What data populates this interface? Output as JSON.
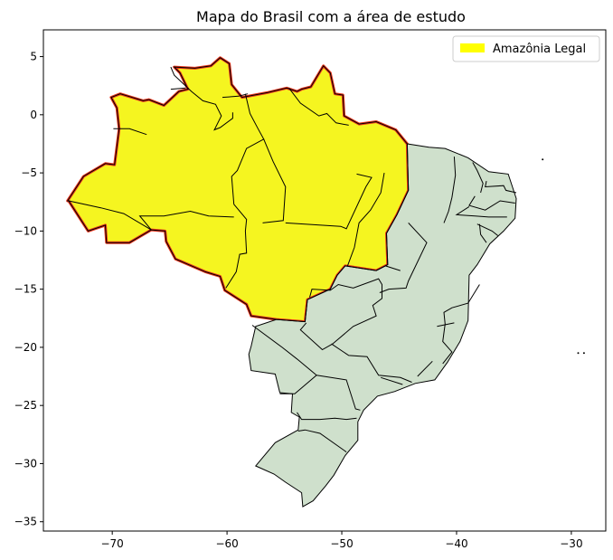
{
  "chart_data": {
    "type": "map",
    "title": "Mapa do Brasil com a área de estudo",
    "xlabel": "",
    "ylabel": "",
    "xlim": [
      -76,
      -27
    ],
    "ylim": [
      -35.8,
      7.3
    ],
    "x_ticks": [
      -70,
      -60,
      -50,
      -40,
      -30
    ],
    "y_ticks": [
      5,
      0,
      -5,
      -10,
      -15,
      -20,
      -25,
      -30,
      -35
    ],
    "grid": false,
    "legend": {
      "placement": "top-right",
      "entries": [
        {
          "label": "Amazônia Legal",
          "color": "#ffff00"
        }
      ]
    },
    "colors": {
      "amazonia_fill": "#f5f520",
      "amazonia_outline": "#e8341c",
      "other_states_fill": "#cfe0cc",
      "state_border": "#000000"
    },
    "regions": [
      {
        "name": "amazonia",
        "polygon": [
          [
            -73.9,
            -7.4
          ],
          [
            -72.5,
            -5.3
          ],
          [
            -70.6,
            -4.2
          ],
          [
            -69.8,
            -4.3
          ],
          [
            -69.4,
            -1.2
          ],
          [
            -69.6,
            0.6
          ],
          [
            -70.1,
            1.5
          ],
          [
            -69.3,
            1.8
          ],
          [
            -67.3,
            1.2
          ],
          [
            -66.8,
            1.3
          ],
          [
            -65.5,
            0.8
          ],
          [
            -64.2,
            2.0
          ],
          [
            -63.4,
            2.2
          ],
          [
            -64.1,
            3.6
          ],
          [
            -64.6,
            4.1
          ],
          [
            -62.8,
            4.0
          ],
          [
            -61.4,
            4.2
          ],
          [
            -60.6,
            4.9
          ],
          [
            -59.8,
            4.4
          ],
          [
            -59.6,
            2.6
          ],
          [
            -58.7,
            1.5
          ],
          [
            -56.5,
            1.9
          ],
          [
            -54.8,
            2.3
          ],
          [
            -53.9,
            2.0
          ],
          [
            -53.5,
            2.2
          ],
          [
            -52.7,
            2.4
          ],
          [
            -51.6,
            4.2
          ],
          [
            -51.0,
            3.6
          ],
          [
            -50.6,
            1.8
          ],
          [
            -49.9,
            1.7
          ],
          [
            -49.8,
            -0.1
          ],
          [
            -48.5,
            -0.8
          ],
          [
            -47.0,
            -0.6
          ],
          [
            -45.3,
            -1.3
          ],
          [
            -44.3,
            -2.5
          ],
          [
            -44.2,
            -6.5
          ],
          [
            -45.2,
            -8.6
          ],
          [
            -46.1,
            -10.2
          ],
          [
            -46.0,
            -12.9
          ],
          [
            -47.0,
            -13.4
          ],
          [
            -49.7,
            -13.0
          ],
          [
            -50.4,
            -13.8
          ],
          [
            -51.0,
            -15.0
          ],
          [
            -53.0,
            -15.9
          ],
          [
            -53.2,
            -17.8
          ],
          [
            -55.7,
            -17.6
          ],
          [
            -57.9,
            -17.3
          ],
          [
            -58.3,
            -16.3
          ],
          [
            -60.2,
            -15.1
          ],
          [
            -60.6,
            -13.9
          ],
          [
            -61.9,
            -13.5
          ],
          [
            -64.5,
            -12.4
          ],
          [
            -65.3,
            -10.9
          ],
          [
            -65.4,
            -10.0
          ],
          [
            -66.6,
            -9.9
          ],
          [
            -68.5,
            -11.0
          ],
          [
            -70.5,
            -11.0
          ],
          [
            -70.6,
            -9.5
          ],
          [
            -72.1,
            -10.0
          ],
          [
            -73.8,
            -7.4
          ]
        ]
      },
      {
        "name": "other-states",
        "polygon": [
          [
            -44.2,
            -6.5
          ],
          [
            -44.3,
            -2.5
          ],
          [
            -42.4,
            -2.8
          ],
          [
            -41.0,
            -2.9
          ],
          [
            -39.0,
            -3.7
          ],
          [
            -37.2,
            -4.9
          ],
          [
            -35.5,
            -5.1
          ],
          [
            -34.8,
            -7.2
          ],
          [
            -34.9,
            -8.9
          ],
          [
            -35.9,
            -10.0
          ],
          [
            -37.1,
            -11.1
          ],
          [
            -38.2,
            -12.9
          ],
          [
            -38.9,
            -13.8
          ],
          [
            -39.0,
            -17.7
          ],
          [
            -39.7,
            -19.5
          ],
          [
            -40.8,
            -21.3
          ],
          [
            -41.9,
            -22.8
          ],
          [
            -43.6,
            -23.1
          ],
          [
            -45.4,
            -23.8
          ],
          [
            -46.9,
            -24.2
          ],
          [
            -48.1,
            -25.4
          ],
          [
            -48.6,
            -26.4
          ],
          [
            -48.6,
            -28.0
          ],
          [
            -49.7,
            -29.3
          ],
          [
            -50.7,
            -31.0
          ],
          [
            -51.4,
            -31.9
          ],
          [
            -52.5,
            -33.2
          ],
          [
            -53.4,
            -33.7
          ],
          [
            -53.5,
            -32.5
          ],
          [
            -54.9,
            -31.6
          ],
          [
            -55.9,
            -30.9
          ],
          [
            -57.5,
            -30.2
          ],
          [
            -55.8,
            -28.2
          ],
          [
            -53.8,
            -27.1
          ],
          [
            -53.7,
            -26.0
          ],
          [
            -54.4,
            -25.6
          ],
          [
            -54.3,
            -24.0
          ],
          [
            -55.4,
            -23.9
          ],
          [
            -55.8,
            -22.3
          ],
          [
            -57.9,
            -22.0
          ],
          [
            -58.1,
            -20.6
          ],
          [
            -57.9,
            -19.9
          ],
          [
            -57.5,
            -18.2
          ],
          [
            -55.7,
            -17.6
          ],
          [
            -53.2,
            -17.8
          ],
          [
            -53.0,
            -15.9
          ],
          [
            -51.0,
            -15.0
          ],
          [
            -50.4,
            -13.8
          ],
          [
            -49.7,
            -13.0
          ],
          [
            -47.0,
            -13.4
          ],
          [
            -46.0,
            -12.9
          ],
          [
            -46.1,
            -10.2
          ],
          [
            -45.2,
            -8.6
          ]
        ]
      }
    ],
    "islands": [
      [
        -32.5,
        -3.85
      ],
      [
        -29.4,
        -20.5
      ],
      [
        -28.9,
        -20.5
      ]
    ],
    "borders": [
      [
        [
          -73.8,
          -7.4
        ],
        [
          -71.0,
          -8.0
        ],
        [
          -69.0,
          -8.5
        ],
        [
          -66.6,
          -9.9
        ]
      ],
      [
        [
          -69.9,
          -1.2
        ],
        [
          -68.5,
          -1.2
        ],
        [
          -67.0,
          -1.7
        ]
      ],
      [
        [
          -64.9,
          2.2
        ],
        [
          -63.6,
          2.3
        ]
      ],
      [
        [
          -60.4,
          1.5
        ],
        [
          -59.0,
          1.6
        ],
        [
          -58.2,
          1.8
        ]
      ],
      [
        [
          -64.9,
          4.1
        ],
        [
          -64.6,
          3.4
        ],
        [
          -63.1,
          2.0
        ],
        [
          -62.1,
          1.2
        ],
        [
          -61.0,
          0.9
        ],
        [
          -60.5,
          -0.1
        ],
        [
          -61.1,
          -1.3
        ],
        [
          -60.6,
          -1.1
        ],
        [
          -59.5,
          -0.3
        ],
        [
          -59.5,
          0.2
        ]
      ],
      [
        [
          -58.4,
          1.8
        ],
        [
          -58.0,
          0.1
        ],
        [
          -57.3,
          -1.2
        ],
        [
          -56.8,
          -2.1
        ],
        [
          -58.3,
          -2.9
        ],
        [
          -59.1,
          -4.8
        ],
        [
          -59.6,
          -5.3
        ],
        [
          -59.4,
          -7.7
        ],
        [
          -58.3,
          -9.0
        ],
        [
          -58.4,
          -10.0
        ],
        [
          -58.3,
          -11.9
        ],
        [
          -58.9,
          -12.0
        ],
        [
          -59.2,
          -13.5
        ],
        [
          -60.1,
          -14.9
        ]
      ],
      [
        [
          -66.6,
          -9.9
        ],
        [
          -67.6,
          -8.7
        ],
        [
          -65.5,
          -8.7
        ],
        [
          -63.2,
          -8.3
        ],
        [
          -61.6,
          -8.7
        ],
        [
          -59.4,
          -8.8
        ]
      ],
      [
        [
          -54.6,
          2.3
        ],
        [
          -53.6,
          1.0
        ],
        [
          -52.0,
          -0.1
        ],
        [
          -51.3,
          0.1
        ],
        [
          -50.5,
          -0.7
        ],
        [
          -49.4,
          -0.9
        ]
      ],
      [
        [
          -56.8,
          -2.1
        ],
        [
          -56.0,
          -4.0
        ],
        [
          -54.9,
          -6.2
        ],
        [
          -55.1,
          -9.1
        ],
        [
          -56.9,
          -9.3
        ]
      ],
      [
        [
          -54.9,
          -9.3
        ],
        [
          -50.1,
          -9.6
        ],
        [
          -49.6,
          -9.8
        ],
        [
          -47.9,
          -6.2
        ],
        [
          -47.4,
          -5.4
        ],
        [
          -48.7,
          -5.1
        ]
      ],
      [
        [
          -46.3,
          -5.0
        ],
        [
          -46.6,
          -6.7
        ],
        [
          -47.5,
          -8.2
        ],
        [
          -48.5,
          -9.3
        ],
        [
          -48.9,
          -11.4
        ],
        [
          -49.5,
          -13.0
        ]
      ],
      [
        [
          -52.8,
          -15.7
        ],
        [
          -52.6,
          -15.0
        ],
        [
          -51.0,
          -15.1
        ],
        [
          -50.3,
          -14.6
        ],
        [
          -49.0,
          -14.9
        ],
        [
          -46.8,
          -14.1
        ],
        [
          -46.5,
          -14.6
        ],
        [
          -46.5,
          -15.8
        ],
        [
          -47.3,
          -16.4
        ],
        [
          -47.0,
          -17.3
        ],
        [
          -49.0,
          -18.2
        ],
        [
          -50.8,
          -19.7
        ],
        [
          -51.7,
          -20.2
        ],
        [
          -53.6,
          -18.5
        ],
        [
          -53.1,
          -17.9
        ]
      ],
      [
        [
          -57.8,
          -18.1
        ],
        [
          -55.2,
          -20.0
        ],
        [
          -53.9,
          -21.0
        ],
        [
          -52.2,
          -22.4
        ],
        [
          -54.1,
          -24.0
        ],
        [
          -55.4,
          -24.0
        ]
      ],
      [
        [
          -52.2,
          -22.4
        ],
        [
          -49.6,
          -22.8
        ],
        [
          -48.8,
          -25.3
        ],
        [
          -48.4,
          -25.4
        ]
      ],
      [
        [
          -53.9,
          -25.6
        ],
        [
          -53.5,
          -26.2
        ],
        [
          -51.9,
          -26.2
        ],
        [
          -50.6,
          -26.1
        ],
        [
          -49.6,
          -26.2
        ],
        [
          -48.7,
          -26.1
        ]
      ],
      [
        [
          -53.8,
          -27.2
        ],
        [
          -53.2,
          -27.1
        ],
        [
          -51.9,
          -27.4
        ],
        [
          -49.6,
          -29.0
        ]
      ],
      [
        [
          -44.2,
          -9.3
        ],
        [
          -42.6,
          -11.0
        ],
        [
          -44.2,
          -14.3
        ],
        [
          -44.4,
          -14.9
        ],
        [
          -45.9,
          -15.0
        ],
        [
          -46.7,
          -15.3
        ]
      ],
      [
        [
          -44.9,
          -13.4
        ],
        [
          -46.2,
          -13.0
        ]
      ],
      [
        [
          -38.0,
          -14.6
        ],
        [
          -39.0,
          -16.2
        ],
        [
          -40.4,
          -16.6
        ],
        [
          -41.1,
          -17.0
        ],
        [
          -41.0,
          -18.0
        ],
        [
          -41.2,
          -19.5
        ],
        [
          -40.4,
          -20.4
        ],
        [
          -41.2,
          -21.4
        ]
      ],
      [
        [
          -40.2,
          -17.9
        ],
        [
          -41.7,
          -18.2
        ]
      ],
      [
        [
          -50.9,
          -19.7
        ],
        [
          -49.4,
          -20.7
        ],
        [
          -47.8,
          -20.8
        ],
        [
          -46.8,
          -22.4
        ],
        [
          -44.9,
          -22.6
        ],
        [
          -43.9,
          -23.0
        ]
      ],
      [
        [
          -46.6,
          -22.6
        ],
        [
          -44.7,
          -23.2
        ]
      ],
      [
        [
          -42.1,
          -21.2
        ],
        [
          -43.4,
          -22.5
        ]
      ],
      [
        [
          -40.2,
          -3.6
        ],
        [
          -40.1,
          -5.2
        ],
        [
          -40.4,
          -7.1
        ],
        [
          -40.7,
          -8.3
        ],
        [
          -41.1,
          -9.3
        ]
      ],
      [
        [
          -38.6,
          -4.1
        ],
        [
          -38.2,
          -4.8
        ],
        [
          -37.7,
          -5.9
        ],
        [
          -37.9,
          -6.7
        ]
      ],
      [
        [
          -37.4,
          -5.7
        ],
        [
          -37.5,
          -6.2
        ],
        [
          -35.9,
          -6.1
        ],
        [
          -35.7,
          -6.5
        ],
        [
          -34.8,
          -6.7
        ]
      ],
      [
        [
          -38.4,
          -7.0
        ],
        [
          -38.9,
          -7.8
        ],
        [
          -37.5,
          -8.2
        ],
        [
          -36.2,
          -7.4
        ],
        [
          -34.9,
          -7.6
        ]
      ],
      [
        [
          -38.9,
          -7.9
        ],
        [
          -40.0,
          -8.6
        ],
        [
          -38.4,
          -8.7
        ],
        [
          -37.2,
          -8.8
        ],
        [
          -35.6,
          -8.8
        ]
      ],
      [
        [
          -38.2,
          -9.4
        ],
        [
          -36.9,
          -10.0
        ],
        [
          -36.4,
          -10.4
        ]
      ],
      [
        [
          -38.0,
          -9.4
        ],
        [
          -37.9,
          -10.3
        ],
        [
          -37.4,
          -11.0
        ]
      ]
    ]
  }
}
